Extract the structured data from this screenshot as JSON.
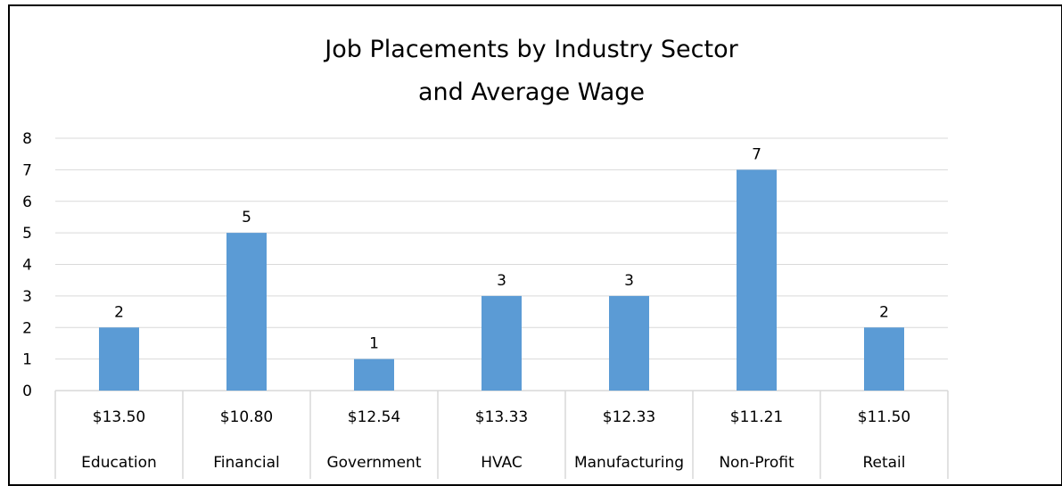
{
  "chart_data": {
    "type": "bar",
    "title_lines": [
      "Job Placements by Industry Sector",
      "and Average Wage"
    ],
    "categories": [
      "Education",
      "Financial",
      "Government",
      "HVAC",
      "Manufacturing",
      "Non-Profit",
      "Retail"
    ],
    "wages": [
      "$13.50",
      "$10.80",
      "$12.54",
      "$13.33",
      "$12.33",
      "$11.21",
      "$11.50"
    ],
    "values": [
      2,
      5,
      1,
      3,
      3,
      7,
      2
    ],
    "data_labels": [
      "2",
      "5",
      "1",
      "3",
      "3",
      "7",
      "2"
    ],
    "y_ticks": [
      "0",
      "1",
      "2",
      "3",
      "4",
      "5",
      "6",
      "7",
      "8"
    ],
    "ylim": [
      0,
      8
    ],
    "grid": true,
    "legend": "none",
    "bar_color": "#5b9bd5",
    "gridline_color": "#d9d9d9"
  }
}
